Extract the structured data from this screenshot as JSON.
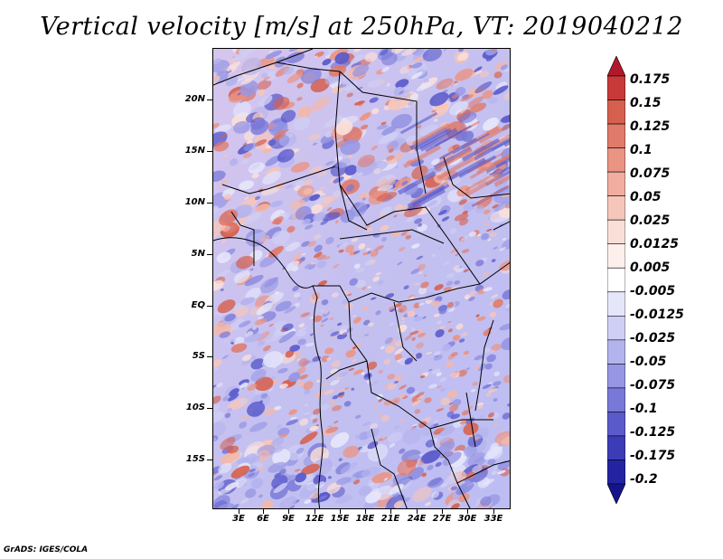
{
  "title": "Vertical velocity [m/s] at 250hPa, VT: 2019040212",
  "map": {
    "lat_labels": [
      "20N",
      "15N",
      "10N",
      "5N",
      "EQ",
      "5S",
      "10S",
      "15S"
    ],
    "lon_labels": [
      "3E",
      "6E",
      "9E",
      "12E",
      "15E",
      "18E",
      "21E",
      "24E",
      "27E",
      "30E",
      "33E"
    ]
  },
  "colorbar": {
    "labels": [
      "0.175",
      "0.15",
      "0.125",
      "0.1",
      "0.075",
      "0.05",
      "0.025",
      "0.0125",
      "0.005",
      "-0.005",
      "-0.0125",
      "-0.025",
      "-0.05",
      "-0.075",
      "-0.1",
      "-0.125",
      "-0.175",
      "-0.2"
    ],
    "colors": [
      "#b2182b",
      "#c83a3a",
      "#d6604d",
      "#e07a6a",
      "#ea9484",
      "#f1ad9f",
      "#f6c6bb",
      "#fadfd8",
      "#fdf0ec",
      "#ffffff",
      "#e6e6fb",
      "#cfcff5",
      "#b3b3ee",
      "#9696e4",
      "#7878d8",
      "#5a5acb",
      "#3c3cb8",
      "#2424a3",
      "#14148c"
    ]
  },
  "footer": "GrADS: IGES/COLA"
}
